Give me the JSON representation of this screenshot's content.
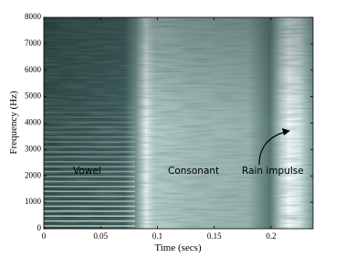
{
  "chart_data": {
    "type": "spectrogram",
    "x_label": "Time (secs)",
    "y_label": "Frequency (Hz)",
    "xlim": [
      0,
      0.237
    ],
    "xticks": [
      0,
      0.05,
      0.1,
      0.15,
      0.2
    ],
    "ylim": [
      0,
      8000
    ],
    "yticks": [
      0,
      1000,
      2000,
      3000,
      4000,
      5000,
      6000,
      7000,
      8000
    ],
    "annotations": [
      "Vowel",
      "Consonant",
      "Rain impulse"
    ]
  }
}
